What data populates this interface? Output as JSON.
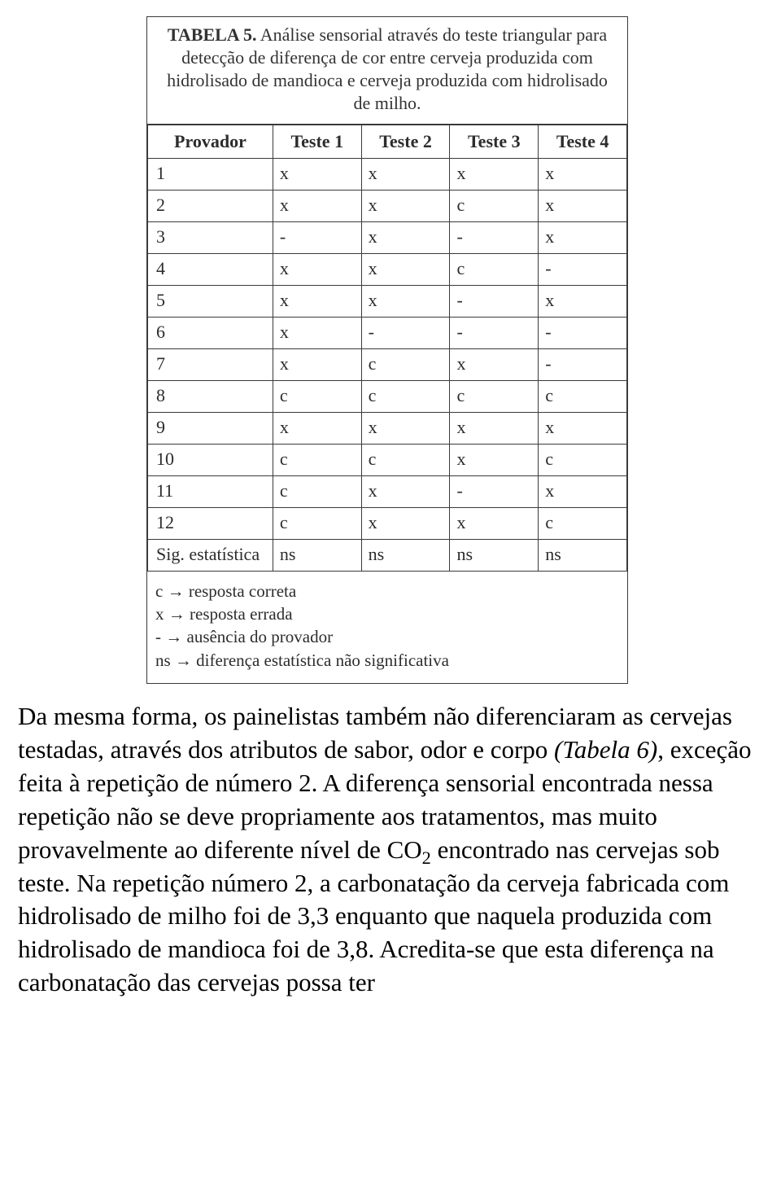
{
  "table": {
    "caption_bold": "TABELA 5.",
    "caption_rest": " Análise sensorial através do teste triangular para detecção de diferença de cor entre cerveja produzida com hidrolisado de mandioca e cerveja produzida com hidrolisado de milho.",
    "headers": [
      "Provador",
      "Teste 1",
      "Teste 2",
      "Teste 3",
      "Teste 4"
    ],
    "rows": [
      [
        "1",
        "x",
        "x",
        "x",
        "x"
      ],
      [
        "2",
        "x",
        "x",
        "c",
        "x"
      ],
      [
        "3",
        "-",
        "x",
        "-",
        "x"
      ],
      [
        "4",
        "x",
        "x",
        "c",
        "-"
      ],
      [
        "5",
        "x",
        "x",
        "-",
        "x"
      ],
      [
        "6",
        "x",
        "-",
        "-",
        "-"
      ],
      [
        "7",
        "x",
        "c",
        "x",
        "-"
      ],
      [
        "8",
        "c",
        "c",
        "c",
        "c"
      ],
      [
        "9",
        "x",
        "x",
        "x",
        "x"
      ],
      [
        "10",
        "c",
        "c",
        "x",
        "c"
      ],
      [
        "11",
        "c",
        "x",
        "-",
        "x"
      ],
      [
        "12",
        "c",
        "x",
        "x",
        "c"
      ]
    ],
    "sig_row": [
      "Sig. estatística",
      "ns",
      "ns",
      "ns",
      "ns"
    ],
    "legend": [
      "c → resposta correta",
      "x → resposta errada",
      "- → ausência do provador",
      "ns → diferença estatística não significativa"
    ]
  },
  "paragraph": {
    "t1": "Da mesma forma, os painelistas também não diferenciaram as cervejas testadas, através dos atributos de sabor, odor e corpo ",
    "italic": "(Tabela 6)",
    "t2": ", exceção feita à repetição de número 2. A diferença sensorial encontrada nessa repetição não se deve propriamente aos tratamentos, mas muito provavelmente ao diferente nível de CO",
    "sub": "2",
    "t3": " encontrado nas cervejas sob teste. Na repetição número 2, a carbonatação da cerveja fabricada com hidrolisado de milho foi de 3,3 enquanto que naquela produzida com hidrolisado de mandioca foi de 3,8. Acredita-se que esta diferença na carbonatação das cervejas possa ter"
  }
}
